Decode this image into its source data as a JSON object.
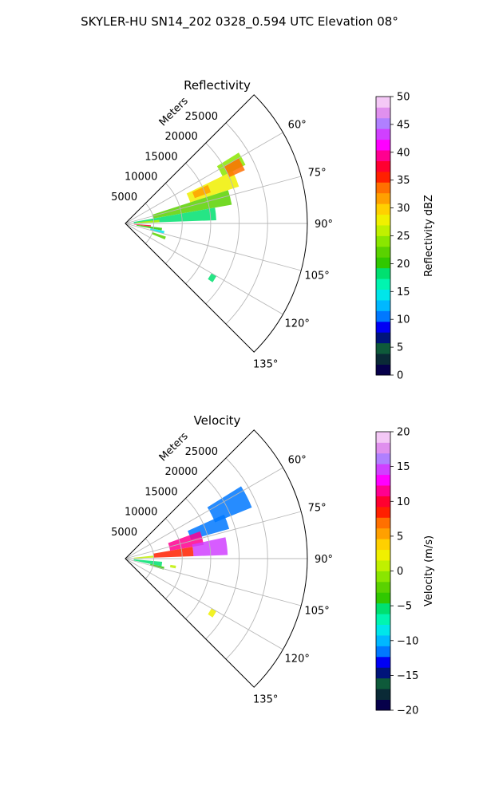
{
  "figure": {
    "suptitle": "SKYLER-HU  SN14_202  0328_0.594 UTC Elevation 08°"
  },
  "chart_data": [
    {
      "type": "heatmap",
      "projection": "polar-sector",
      "title": "Reflectivity",
      "radial_axis_label": "Meters",
      "radial_ticks": [
        5000,
        10000,
        15000,
        20000,
        25000
      ],
      "radial_tick_labels": [
        "5000",
        "10000",
        "15000",
        "20000",
        "25000"
      ],
      "rlim": [
        0,
        32000
      ],
      "theta_range_deg": [
        45,
        135
      ],
      "theta_ticks_deg": [
        60,
        75,
        90,
        105,
        120,
        135
      ],
      "theta_tick_labels": [
        "60°",
        "75°",
        "90°",
        "105°",
        "120°",
        "135°"
      ],
      "grid": true,
      "colorbar": {
        "label": "Reflectivity dBZ",
        "vmin": 0,
        "vmax": 50,
        "ticks": [
          0,
          5,
          10,
          15,
          20,
          25,
          30,
          35,
          40,
          45,
          50
        ],
        "tick_labels": [
          "0",
          "5",
          "10",
          "15",
          "20",
          "25",
          "30",
          "35",
          "40",
          "45",
          "50"
        ],
        "colors": [
          "#06004a",
          "#0a2a36",
          "#0e5a3a",
          "#00147a",
          "#0000f5",
          "#0078ff",
          "#00b8ff",
          "#00e6ea",
          "#00f5b0",
          "#00e070",
          "#30c800",
          "#5ad200",
          "#8ae600",
          "#c0f000",
          "#f0f000",
          "#ffd000",
          "#ffa000",
          "#ff7000",
          "#ff2000",
          "#ff0030",
          "#ff0090",
          "#ff00ff",
          "#d040ff",
          "#b080ff",
          "#e090ee",
          "#f4c8f6"
        ]
      },
      "echoes": [
        {
          "theta_deg": [
            58,
            64
          ],
          "r_m": [
            19000,
            23500
          ],
          "value": 24
        },
        {
          "theta_deg": [
            64,
            72
          ],
          "r_m": [
            12000,
            21000
          ],
          "value": 27
        },
        {
          "theta_deg": [
            60,
            66
          ],
          "r_m": [
            20000,
            23000
          ],
          "value": 34
        },
        {
          "theta_deg": [
            65,
            70
          ],
          "r_m": [
            13000,
            16000
          ],
          "value": 31
        },
        {
          "theta_deg": [
            72,
            80
          ],
          "r_m": [
            5000,
            19000
          ],
          "value": 22
        },
        {
          "theta_deg": [
            80,
            88
          ],
          "r_m": [
            1500,
            16000
          ],
          "value": 19
        },
        {
          "theta_deg": [
            84,
            88
          ],
          "r_m": [
            2000,
            6000
          ],
          "value": 25
        },
        {
          "theta_deg": [
            88,
            90
          ],
          "r_m": [
            0,
            3000
          ],
          "value": 12
        },
        {
          "theta_deg": [
            94,
            97
          ],
          "r_m": [
            1500,
            4500
          ],
          "value": 37
        },
        {
          "theta_deg": [
            97,
            101
          ],
          "r_m": [
            2000,
            6500
          ],
          "value": 20
        },
        {
          "theta_deg": [
            101,
            105
          ],
          "r_m": [
            4500,
            7000
          ],
          "value": 14
        },
        {
          "theta_deg": [
            108,
            112
          ],
          "r_m": [
            5000,
            7500
          ],
          "value": 22
        },
        {
          "theta_deg": [
            120,
            124
          ],
          "r_m": [
            17500,
            18500
          ],
          "value": 19
        }
      ]
    },
    {
      "type": "heatmap",
      "projection": "polar-sector",
      "title": "Velocity",
      "radial_axis_label": "Meters",
      "radial_ticks": [
        5000,
        10000,
        15000,
        20000,
        25000
      ],
      "radial_tick_labels": [
        "5000",
        "10000",
        "15000",
        "20000",
        "25000"
      ],
      "rlim": [
        0,
        32000
      ],
      "theta_range_deg": [
        45,
        135
      ],
      "theta_ticks_deg": [
        60,
        75,
        90,
        105,
        120,
        135
      ],
      "theta_tick_labels": [
        "60°",
        "75°",
        "90°",
        "105°",
        "120°",
        "135°"
      ],
      "grid": true,
      "colorbar": {
        "label": "Velocity (m/s)",
        "vmin": -20,
        "vmax": 20,
        "ticks": [
          -20,
          -15,
          -10,
          -5,
          0,
          5,
          10,
          15,
          20
        ],
        "tick_labels": [
          "−20",
          "−15",
          "−10",
          "−5",
          "0",
          "5",
          "10",
          "15",
          "20"
        ],
        "colors": [
          "#06004a",
          "#0a2a36",
          "#0e5a3a",
          "#00147a",
          "#0000f5",
          "#0078ff",
          "#00b8ff",
          "#00e6ea",
          "#00f5b0",
          "#00e070",
          "#30c800",
          "#5ad200",
          "#8ae600",
          "#c0f000",
          "#f0f000",
          "#ffd000",
          "#ffa000",
          "#ff7000",
          "#ff2000",
          "#ff0030",
          "#ff0090",
          "#ff00ff",
          "#d040ff",
          "#b080ff",
          "#e090ee",
          "#f4c8f6"
        ]
      },
      "echoes": [
        {
          "theta_deg": [
            58,
            68
          ],
          "r_m": [
            17000,
            24000
          ],
          "value": -11
        },
        {
          "theta_deg": [
            66,
            74
          ],
          "r_m": [
            12000,
            19000
          ],
          "value": -12
        },
        {
          "theta_deg": [
            70,
            80
          ],
          "r_m": [
            8000,
            14000
          ],
          "value": 12
        },
        {
          "theta_deg": [
            78,
            88
          ],
          "r_m": [
            12000,
            18000
          ],
          "value": 15
        },
        {
          "theta_deg": [
            80,
            88
          ],
          "r_m": [
            5000,
            12000
          ],
          "value": 8
        },
        {
          "theta_deg": [
            84,
            88
          ],
          "r_m": [
            1500,
            5000
          ],
          "value": 1
        },
        {
          "theta_deg": [
            88,
            90
          ],
          "r_m": [
            0,
            3000
          ],
          "value": 0
        },
        {
          "theta_deg": [
            95,
            102
          ],
          "r_m": [
            1500,
            6500
          ],
          "value": -6
        },
        {
          "theta_deg": [
            102,
            106
          ],
          "r_m": [
            4500,
            7000
          ],
          "value": -4
        },
        {
          "theta_deg": [
            98,
            101
          ],
          "r_m": [
            8000,
            9000
          ],
          "value": 1
        },
        {
          "theta_deg": [
            120,
            124
          ],
          "r_m": [
            17500,
            18500
          ],
          "value": 2
        }
      ]
    }
  ]
}
